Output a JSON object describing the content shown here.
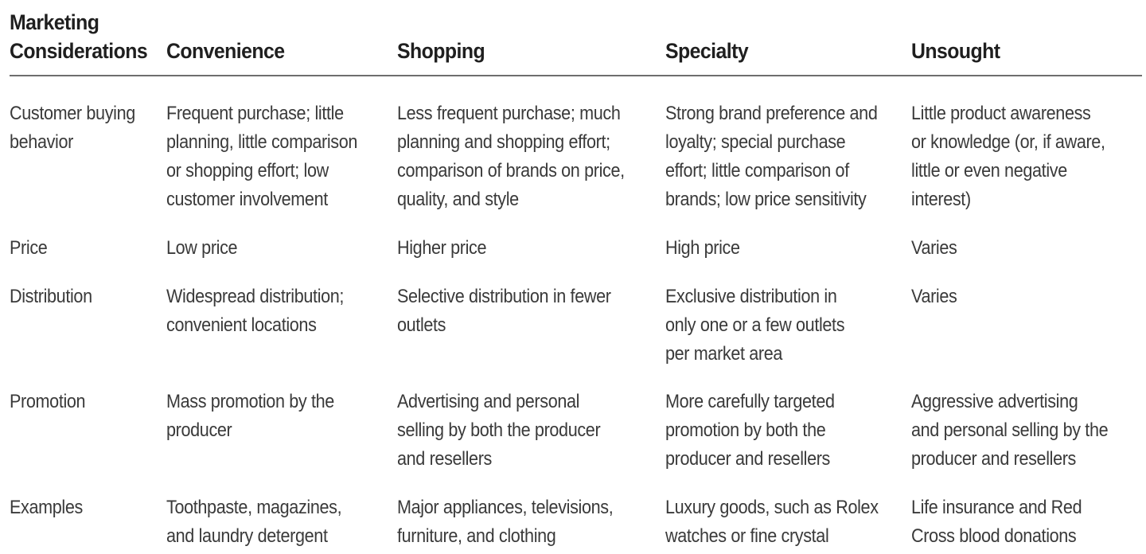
{
  "table": {
    "headers": [
      [
        "Marketing",
        "Considerations"
      ],
      [
        "Convenience"
      ],
      [
        "Shopping"
      ],
      [
        "Specialty"
      ],
      [
        "Unsought"
      ]
    ],
    "rows": [
      {
        "cells": [
          [
            "Customer buying",
            "behavior"
          ],
          [
            "Frequent purchase; little",
            "planning, little comparison",
            "or shopping effort; low",
            "customer involvement"
          ],
          [
            "Less frequent purchase; much",
            "planning and shopping effort;",
            "comparison of brands on price,",
            "quality, and style"
          ],
          [
            "Strong brand preference and",
            "loyalty; special purchase",
            "effort; little comparison of",
            "brands; low price sensitivity"
          ],
          [
            "Little product awareness",
            "or knowledge (or, if aware,",
            "little or even negative",
            "interest)"
          ]
        ]
      },
      {
        "cells": [
          [
            "Price"
          ],
          [
            "Low price"
          ],
          [
            "Higher price"
          ],
          [
            "High price"
          ],
          [
            "Varies"
          ]
        ]
      },
      {
        "cells": [
          [
            "Distribution"
          ],
          [
            "Widespread distribution;",
            "convenient locations"
          ],
          [
            "Selective distribution in fewer",
            "outlets"
          ],
          [
            "Exclusive distribution in",
            "only one or a few outlets",
            "per market area"
          ],
          [
            "Varies"
          ]
        ]
      },
      {
        "cells": [
          [
            "Promotion"
          ],
          [
            "Mass promotion by the",
            "producer"
          ],
          [
            "Advertising and personal",
            "selling by both the producer",
            "and resellers"
          ],
          [
            "More carefully targeted",
            "promotion by both the",
            "producer and resellers"
          ],
          [
            "Aggressive advertising",
            "and personal selling by the",
            "producer and resellers"
          ]
        ]
      },
      {
        "cells": [
          [
            "Examples"
          ],
          [
            "Toothpaste, magazines,",
            "and laundry detergent"
          ],
          [
            "Major appliances, televisions,",
            "furniture, and clothing"
          ],
          [
            "Luxury goods, such as Rolex",
            "watches or fine crystal"
          ],
          [
            "Life insurance and Red",
            "Cross blood donations"
          ]
        ]
      }
    ]
  }
}
